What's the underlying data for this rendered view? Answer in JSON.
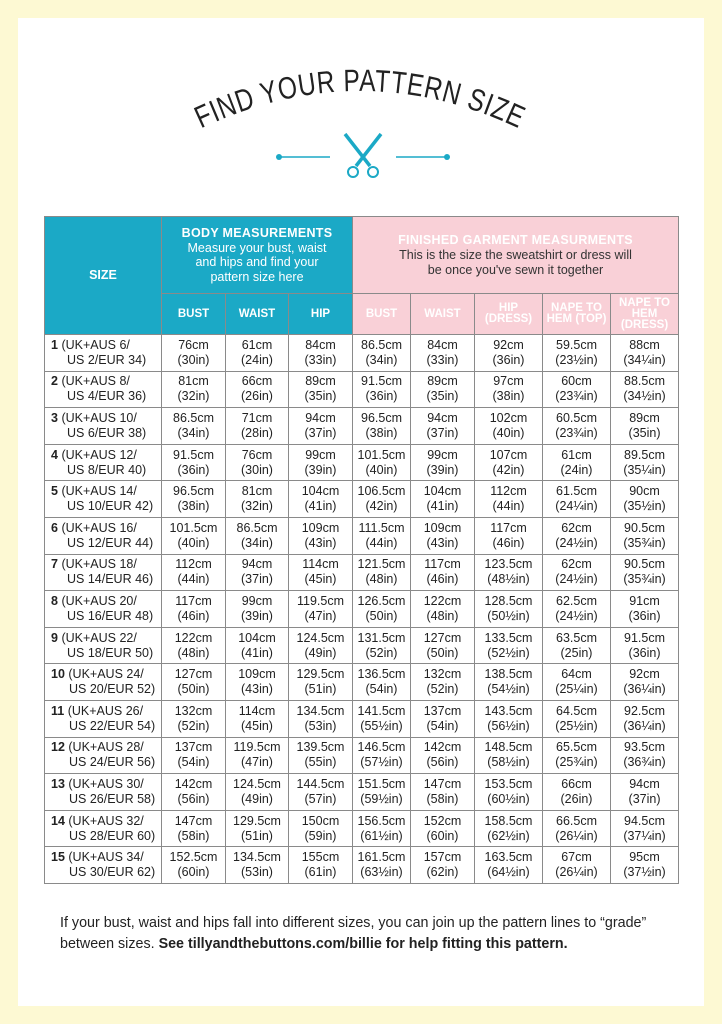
{
  "title": "FIND YOUR PATTERN SIZE",
  "colors": {
    "accent_teal": "#1ba9c6",
    "accent_pink": "#f9d0d7",
    "page_border": "#fdf9d3"
  },
  "icon": "scissors-icon",
  "table": {
    "size_header": "SIZE",
    "body": {
      "title": "BODY MEASUREMENTS",
      "desc": "Measure your bust, waist and hips and find your pattern size here",
      "columns": [
        "BUST",
        "WAIST",
        "HIP"
      ]
    },
    "finished": {
      "title": "FINISHED GARMENT MEASURMENTS",
      "desc": "This is the size the sweatshirt or dress will be once you've sewn it together",
      "columns": [
        "BUST",
        "WAIST",
        "HIP (DRESS)",
        "NAPE TO HEM (TOP)",
        "NAPE TO HEM (DRESS)"
      ]
    },
    "rows": [
      {
        "num": "1",
        "size": [
          "(UK+AUS 6/",
          "US 2/EUR 34)"
        ],
        "cells": [
          [
            "76cm",
            "(30in)"
          ],
          [
            "61cm",
            "(24in)"
          ],
          [
            "84cm",
            "(33in)"
          ],
          [
            "86.5cm",
            "(34in)"
          ],
          [
            "84cm",
            "(33in)"
          ],
          [
            "92cm",
            "(36in)"
          ],
          [
            "59.5cm",
            "(23½in)"
          ],
          [
            "88cm",
            "(34¼in)"
          ]
        ]
      },
      {
        "num": "2",
        "size": [
          "(UK+AUS 8/",
          "US 4/EUR 36)"
        ],
        "cells": [
          [
            "81cm",
            "(32in)"
          ],
          [
            "66cm",
            "(26in)"
          ],
          [
            "89cm",
            "(35in)"
          ],
          [
            "91.5cm",
            "(36in)"
          ],
          [
            "89cm",
            "(35in)"
          ],
          [
            "97cm",
            "(38in)"
          ],
          [
            "60cm",
            "(23¾in)"
          ],
          [
            "88.5cm",
            "(34½in)"
          ]
        ]
      },
      {
        "num": "3",
        "size": [
          "(UK+AUS 10/",
          "US 6/EUR 38)"
        ],
        "cells": [
          [
            "86.5cm",
            "(34in)"
          ],
          [
            "71cm",
            "(28in)"
          ],
          [
            "94cm",
            "(37in)"
          ],
          [
            "96.5cm",
            "(38in)"
          ],
          [
            "94cm",
            "(37in)"
          ],
          [
            "102cm",
            "(40in)"
          ],
          [
            "60.5cm",
            "(23¾in)"
          ],
          [
            "89cm",
            "(35in)"
          ]
        ]
      },
      {
        "num": "4",
        "size": [
          "(UK+AUS 12/",
          "US 8/EUR 40)"
        ],
        "cells": [
          [
            "91.5cm",
            "(36in)"
          ],
          [
            "76cm",
            "(30in)"
          ],
          [
            "99cm",
            "(39in)"
          ],
          [
            "101.5cm",
            "(40in)"
          ],
          [
            "99cm",
            "(39in)"
          ],
          [
            "107cm",
            "(42in)"
          ],
          [
            "61cm",
            "(24in)"
          ],
          [
            "89.5cm",
            "(35¼in)"
          ]
        ]
      },
      {
        "num": "5",
        "size": [
          "(UK+AUS 14/",
          "US 10/EUR 42)"
        ],
        "cells": [
          [
            "96.5cm",
            "(38in)"
          ],
          [
            "81cm",
            "(32in)"
          ],
          [
            "104cm",
            "(41in)"
          ],
          [
            "106.5cm",
            "(42in)"
          ],
          [
            "104cm",
            "(41in)"
          ],
          [
            "112cm",
            "(44in)"
          ],
          [
            "61.5cm",
            "(24¼in)"
          ],
          [
            "90cm",
            "(35½in)"
          ]
        ]
      },
      {
        "num": "6",
        "size": [
          "(UK+AUS 16/",
          "US 12/EUR 44)"
        ],
        "cells": [
          [
            "101.5cm",
            "(40in)"
          ],
          [
            "86.5cm",
            "(34in)"
          ],
          [
            "109cm",
            "(43in)"
          ],
          [
            "111.5cm",
            "(44in)"
          ],
          [
            "109cm",
            "(43in)"
          ],
          [
            "117cm",
            "(46in)"
          ],
          [
            "62cm",
            "(24½in)"
          ],
          [
            "90.5cm",
            "(35¾in)"
          ]
        ]
      },
      {
        "num": "7",
        "size": [
          "(UK+AUS 18/",
          "US 14/EUR 46)"
        ],
        "cells": [
          [
            "112cm",
            "(44in)"
          ],
          [
            "94cm",
            "(37in)"
          ],
          [
            "114cm",
            "(45in)"
          ],
          [
            "121.5cm",
            "(48in)"
          ],
          [
            "117cm",
            "(46in)"
          ],
          [
            "123.5cm",
            "(48½in)"
          ],
          [
            "62cm",
            "(24½in)"
          ],
          [
            "90.5cm",
            "(35¾in)"
          ]
        ]
      },
      {
        "num": "8",
        "size": [
          "(UK+AUS 20/",
          "US 16/EUR 48)"
        ],
        "cells": [
          [
            "117cm",
            "(46in)"
          ],
          [
            "99cm",
            "(39in)"
          ],
          [
            "119.5cm",
            "(47in)"
          ],
          [
            "126.5cm",
            "(50in)"
          ],
          [
            "122cm",
            "(48in)"
          ],
          [
            "128.5cm",
            "(50½in)"
          ],
          [
            "62.5cm",
            "(24½in)"
          ],
          [
            "91cm",
            "(36in)"
          ]
        ]
      },
      {
        "num": "9",
        "size": [
          "(UK+AUS 22/",
          "US 18/EUR 50)"
        ],
        "cells": [
          [
            "122cm",
            "(48in)"
          ],
          [
            "104cm",
            "(41in)"
          ],
          [
            "124.5cm",
            "(49in)"
          ],
          [
            "131.5cm",
            "(52in)"
          ],
          [
            "127cm",
            "(50in)"
          ],
          [
            "133.5cm",
            "(52½in)"
          ],
          [
            "63.5cm",
            "(25in)"
          ],
          [
            "91.5cm",
            "(36in)"
          ]
        ]
      },
      {
        "num": "10",
        "size": [
          "(UK+AUS 24/",
          "US 20/EUR 52)"
        ],
        "cells": [
          [
            "127cm",
            "(50in)"
          ],
          [
            "109cm",
            "(43in)"
          ],
          [
            "129.5cm",
            "(51in)"
          ],
          [
            "136.5cm",
            "(54in)"
          ],
          [
            "132cm",
            "(52in)"
          ],
          [
            "138.5cm",
            "(54½in)"
          ],
          [
            "64cm",
            "(25¼in)"
          ],
          [
            "92cm",
            "(36¼in)"
          ]
        ]
      },
      {
        "num": "11",
        "size": [
          "(UK+AUS 26/",
          "US 22/EUR 54)"
        ],
        "cells": [
          [
            "132cm",
            "(52in)"
          ],
          [
            "114cm",
            "(45in)"
          ],
          [
            "134.5cm",
            "(53in)"
          ],
          [
            "141.5cm",
            "(55½in)"
          ],
          [
            "137cm",
            "(54in)"
          ],
          [
            "143.5cm",
            "(56½in)"
          ],
          [
            "64.5cm",
            "(25½in)"
          ],
          [
            "92.5cm",
            "(36¼in)"
          ]
        ]
      },
      {
        "num": "12",
        "size": [
          "(UK+AUS 28/",
          "US 24/EUR 56)"
        ],
        "cells": [
          [
            "137cm",
            "(54in)"
          ],
          [
            "119.5cm",
            "(47in)"
          ],
          [
            "139.5cm",
            "(55in)"
          ],
          [
            "146.5cm",
            "(57½in)"
          ],
          [
            "142cm",
            "(56in)"
          ],
          [
            "148.5cm",
            "(58½in)"
          ],
          [
            "65.5cm",
            "(25¾in)"
          ],
          [
            "93.5cm",
            "(36¾in)"
          ]
        ]
      },
      {
        "num": "13",
        "size": [
          "(UK+AUS 30/",
          "US 26/EUR 58)"
        ],
        "cells": [
          [
            "142cm",
            "(56in)"
          ],
          [
            "124.5cm",
            "(49in)"
          ],
          [
            "144.5cm",
            "(57in)"
          ],
          [
            "151.5cm",
            "(59½in)"
          ],
          [
            "147cm",
            "(58in)"
          ],
          [
            "153.5cm",
            "(60½in)"
          ],
          [
            "66cm",
            "(26in)"
          ],
          [
            "94cm",
            "(37in)"
          ]
        ]
      },
      {
        "num": "14",
        "size": [
          "(UK+AUS 32/",
          "US 28/EUR 60)"
        ],
        "cells": [
          [
            "147cm",
            "(58in)"
          ],
          [
            "129.5cm",
            "(51in)"
          ],
          [
            "150cm",
            "(59in)"
          ],
          [
            "156.5cm",
            "(61½in)"
          ],
          [
            "152cm",
            "(60in)"
          ],
          [
            "158.5cm",
            "(62½in)"
          ],
          [
            "66.5cm",
            "(26¼in)"
          ],
          [
            "94.5cm",
            "(37¼in)"
          ]
        ]
      },
      {
        "num": "15",
        "size": [
          "(UK+AUS 34/",
          "US 30/EUR 62)"
        ],
        "cells": [
          [
            "152.5cm",
            "(60in)"
          ],
          [
            "134.5cm",
            "(53in)"
          ],
          [
            "155cm",
            "(61in)"
          ],
          [
            "161.5cm",
            "(63½in)"
          ],
          [
            "157cm",
            "(62in)"
          ],
          [
            "163.5cm",
            "(64½in)"
          ],
          [
            "67cm",
            "(26¼in)"
          ],
          [
            "95cm",
            "(37½in)"
          ]
        ]
      }
    ]
  },
  "footer": {
    "text": "If your bust, waist and hips fall into different sizes, you can join up the pattern lines to “grade” between sizes.",
    "bold": "See tillyandthebuttons.com/billie for help fitting this pattern."
  }
}
